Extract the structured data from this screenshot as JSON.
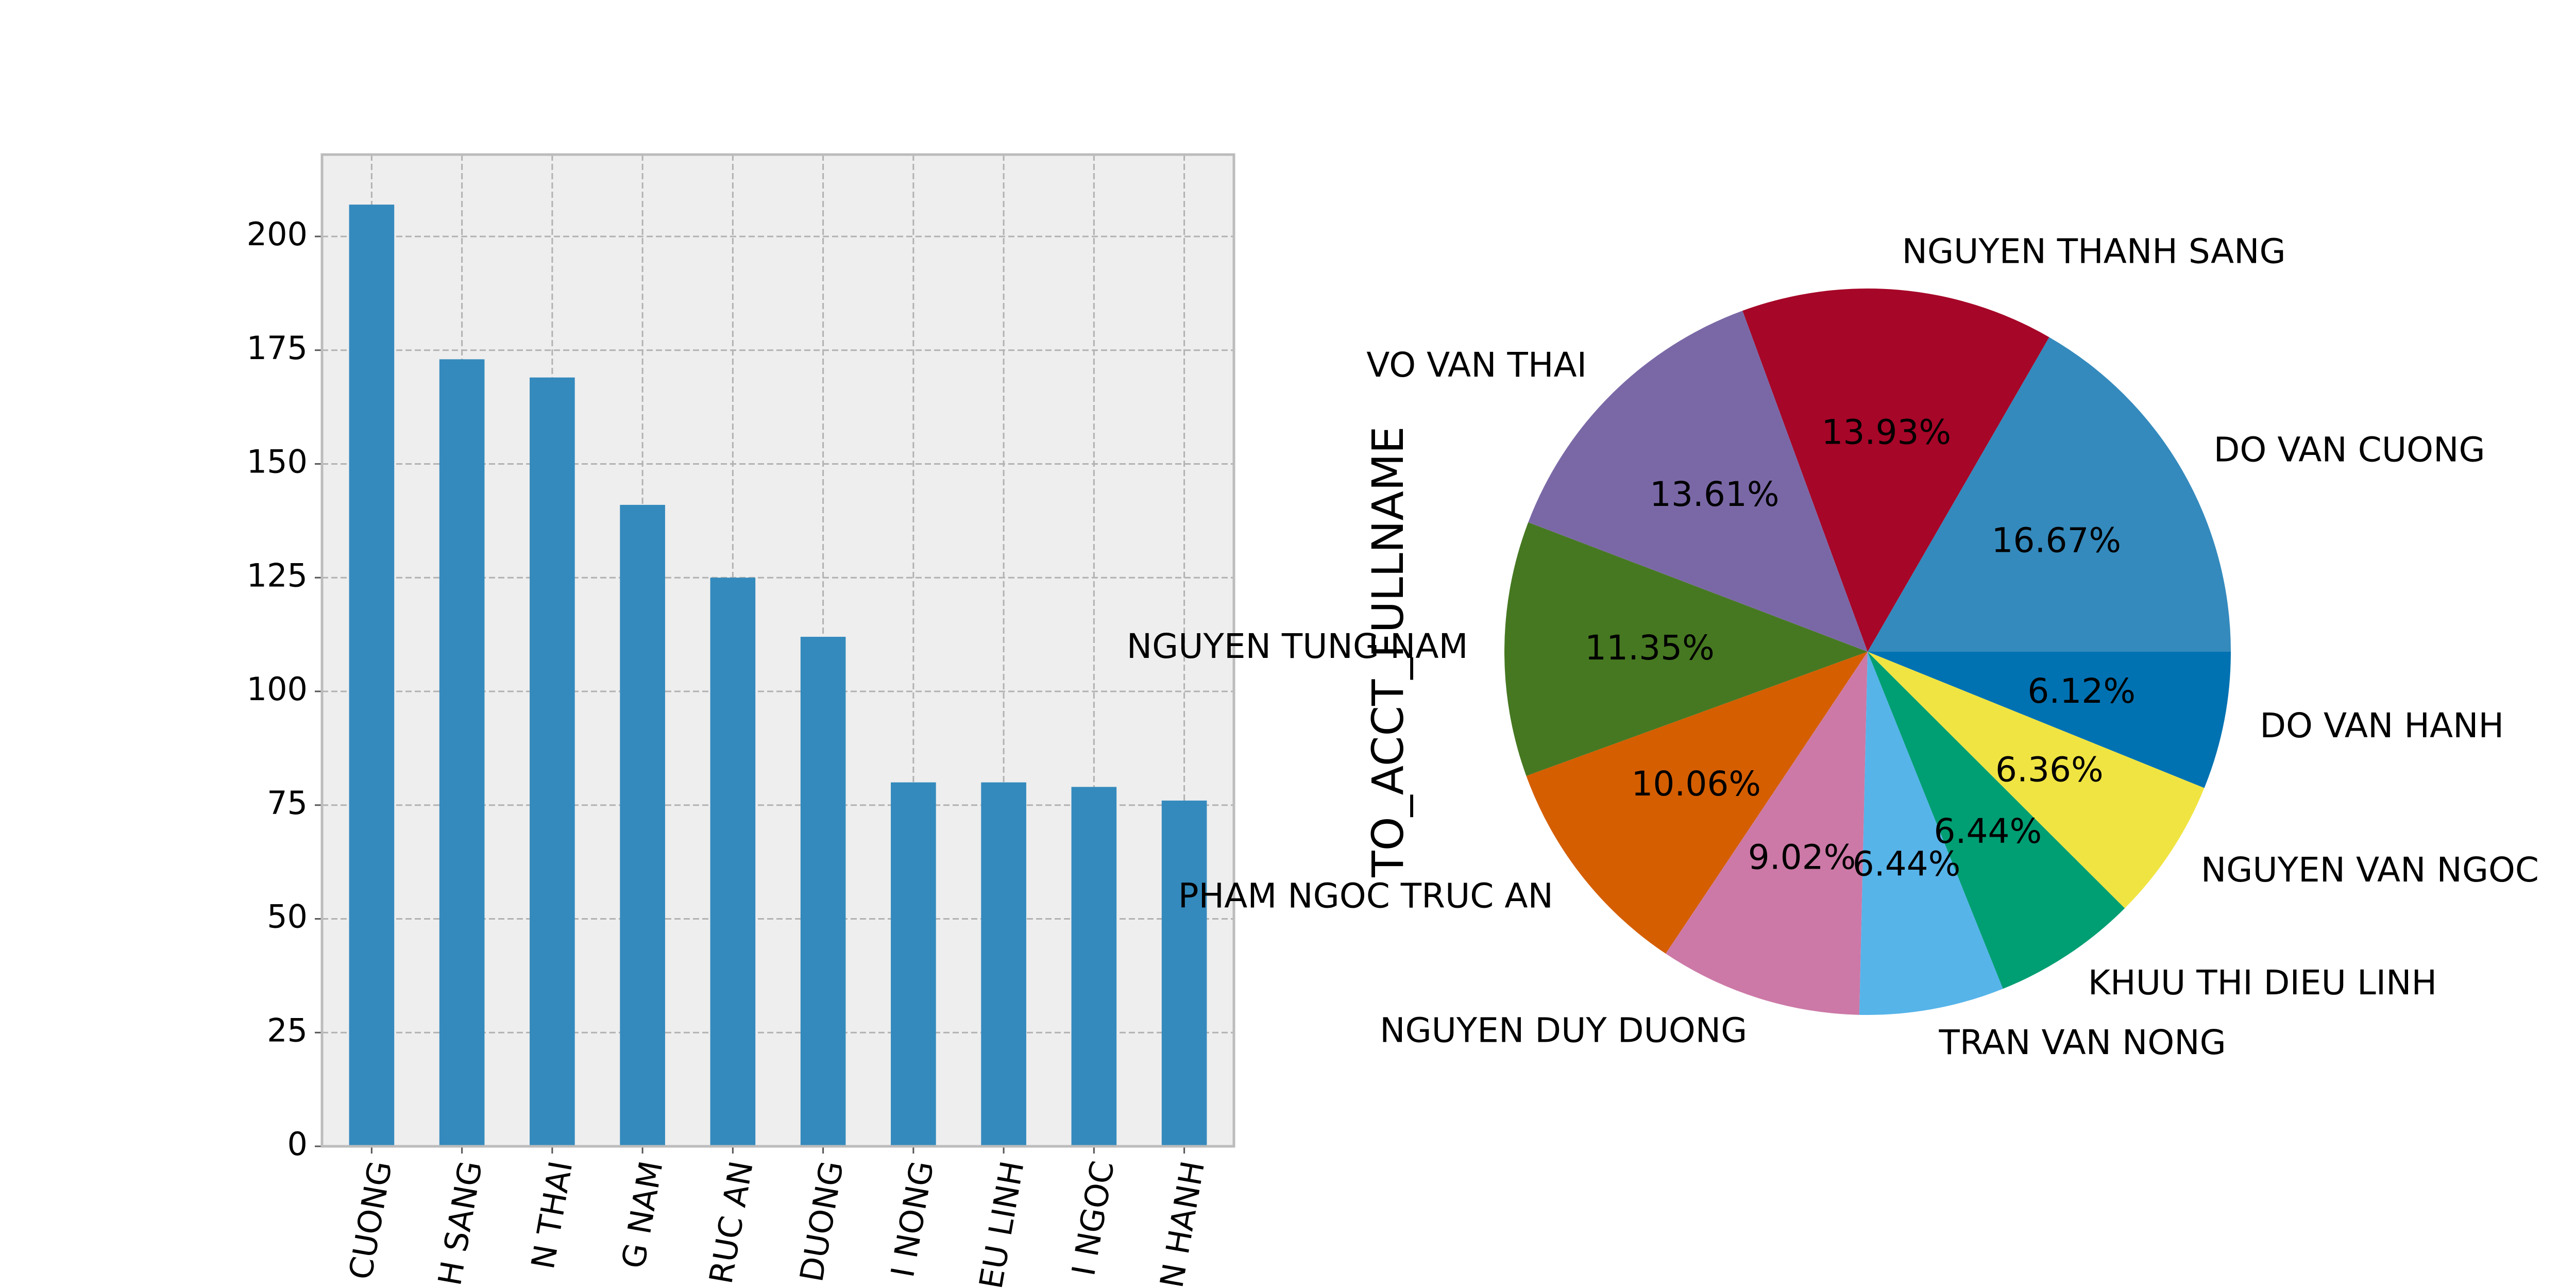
{
  "chart_data": [
    {
      "type": "bar",
      "categories": [
        "DO VAN CUONG",
        "NGUYEN THANH SANG",
        "VO VAN THAI",
        "NGUYEN TUNG NAM",
        "PHAM NGOC TRUC AN",
        "NGUYEN DUY DUONG",
        "TRAN VAN NONG",
        "KHUU THI DIEU LINH",
        "NGUYEN VAN NGOC",
        "DO VAN HANH"
      ],
      "values": [
        207,
        173,
        169,
        141,
        125,
        112,
        80,
        80,
        79,
        76
      ],
      "ylim": [
        0,
        218
      ],
      "yticks": [
        0,
        25,
        50,
        75,
        100,
        125,
        150,
        175,
        200
      ],
      "tick_labels_visible": [
        "CUONG",
        "H SANG",
        "N THAI",
        "G NAM",
        "RUC AN",
        "DUONG",
        "I NONG",
        "EU LINH",
        "I NGOC",
        "N HANH"
      ],
      "grid": true,
      "bar_color": "#348abd",
      "axes_facecolor": "#eeeeee"
    },
    {
      "type": "pie",
      "ylabel": "TO_ACCT_FULLNAME",
      "labels": [
        "DO VAN CUONG",
        "NGUYEN THANH SANG",
        "VO VAN THAI",
        "NGUYEN TUNG NAM",
        "PHAM NGOC TRUC AN",
        "NGUYEN DUY DUONG",
        "TRAN VAN NONG",
        "KHUU THI DIEU LINH",
        "NGUYEN VAN NGOC",
        "DO VAN HANH"
      ],
      "values": [
        207,
        173,
        169,
        141,
        125,
        112,
        80,
        80,
        79,
        76
      ],
      "percent_labels": [
        "16.67%",
        "13.93%",
        "13.61%",
        "11.35%",
        "10.06%",
        "9.02%",
        "6.44%",
        "6.44%",
        "6.36%",
        "6.12%"
      ],
      "colors": [
        "#348abd",
        "#a60628",
        "#7a68a6",
        "#467821",
        "#d55e00",
        "#cc79a7",
        "#56b4e9",
        "#009e73",
        "#f0e442",
        "#0072b2"
      ]
    }
  ]
}
